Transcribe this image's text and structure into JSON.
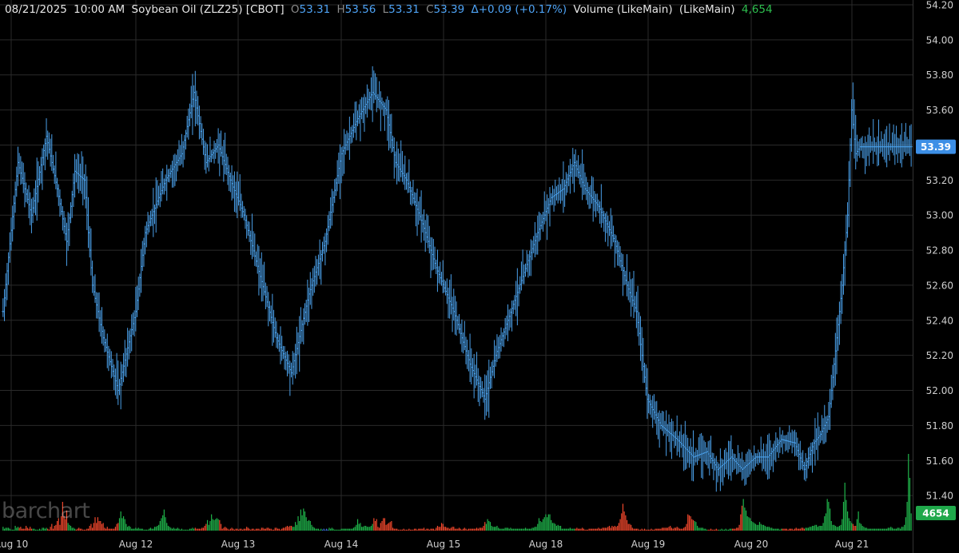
{
  "header": {
    "date": "08/21/2025",
    "time": "10:00 AM",
    "instrument": "Soybean Oil (ZLZ25) [CBOT]",
    "o_label": "O",
    "o_value": "53.31",
    "h_label": "H",
    "h_value": "53.56",
    "l_label": "L",
    "l_value": "53.31",
    "c_label": "C",
    "c_value": "53.39",
    "change": "Δ+0.09 (+0.17%)",
    "volume_label": "Volume (LikeMain)",
    "volume_mode": "(LikeMain)",
    "volume_value": "4,654"
  },
  "watermark": "barchart",
  "colors": {
    "background": "#000000",
    "price_bar": "#4a9fe8",
    "volume_up": "#1fb34a",
    "volume_down": "#f0472c",
    "volume_neutral": "#3a6fd8",
    "grid": "#2a2a2a",
    "price_tag_bg": "#3d8fe6",
    "volume_tag_bg": "#1fa84a"
  },
  "chart_data": {
    "type": "ohlc",
    "y_axis": {
      "ticks": [
        "51.40",
        "51.60",
        "51.80",
        "52.00",
        "52.20",
        "52.40",
        "52.60",
        "52.80",
        "53.00",
        "53.20",
        "53.40",
        "53.60",
        "53.80",
        "54.00",
        "54.20"
      ],
      "range": [
        51.2,
        54.2
      ],
      "side": "right"
    },
    "x_axis": {
      "ticks": [
        "Aug 10",
        "Aug 12",
        "Aug 13",
        "Aug 14",
        "Aug 15",
        "Aug 18",
        "Aug 19",
        "Aug 20",
        "Aug 21"
      ]
    },
    "last_price_tag": "53.39",
    "last_volume_tag": "4654",
    "grid": true,
    "legend": "none",
    "segments": [
      [
        [
          0,
          52.45
        ],
        [
          11,
          53.3
        ],
        [
          21,
          53.0
        ],
        [
          32,
          53.45
        ],
        [
          40,
          53.15
        ],
        [
          47,
          52.85
        ],
        [
          53,
          53.25
        ],
        [
          60,
          53.2
        ],
        [
          66,
          52.6
        ],
        [
          74,
          52.3
        ],
        [
          85,
          52.0
        ],
        [
          98,
          52.45
        ],
        [
          105,
          52.9
        ],
        [
          120,
          53.2
        ],
        [
          132,
          53.35
        ],
        [
          141,
          53.7
        ],
        [
          150,
          53.3
        ],
        [
          159,
          53.4
        ],
        [
          168,
          53.2
        ]
      ],
      [
        [
          168,
          53.2
        ],
        [
          178,
          53.0
        ],
        [
          190,
          52.65
        ],
        [
          202,
          52.3
        ],
        [
          213,
          52.1
        ],
        [
          226,
          52.55
        ],
        [
          238,
          52.85
        ],
        [
          250,
          53.35
        ],
        [
          262,
          53.55
        ],
        [
          273,
          53.7
        ],
        [
          283,
          53.6
        ],
        [
          290,
          53.3
        ],
        [
          298,
          53.2
        ]
      ],
      [
        [
          298,
          53.2
        ],
        [
          310,
          52.95
        ],
        [
          320,
          52.7
        ],
        [
          333,
          52.45
        ],
        [
          345,
          52.15
        ],
        [
          356,
          51.95
        ],
        [
          364,
          52.2
        ],
        [
          373,
          52.4
        ],
        [
          384,
          52.65
        ],
        [
          395,
          52.9
        ],
        [
          405,
          53.1
        ],
        [
          414,
          53.15
        ],
        [
          422,
          53.3
        ],
        [
          430,
          53.15
        ],
        [
          440,
          53.05
        ],
        [
          452,
          52.85
        ],
        [
          461,
          52.6
        ]
      ],
      [
        [
          461,
          52.6
        ],
        [
          468,
          52.45
        ],
        [
          476,
          51.95
        ],
        [
          486,
          51.8
        ],
        [
          498,
          51.72
        ],
        [
          510,
          51.62
        ],
        [
          520,
          51.65
        ],
        [
          528,
          51.55
        ],
        [
          538,
          51.62
        ],
        [
          546,
          51.55
        ],
        [
          556,
          51.62
        ],
        [
          565,
          51.62
        ],
        [
          575,
          51.72
        ],
        [
          585,
          51.7
        ],
        [
          592,
          51.55
        ]
      ],
      [
        [
          592,
          51.55
        ],
        [
          599,
          51.7
        ],
        [
          604,
          51.75
        ],
        [
          610,
          51.85
        ],
        [
          616,
          52.3
        ],
        [
          620,
          52.6
        ],
        [
          624,
          53.0
        ],
        [
          627,
          53.6
        ],
        [
          630,
          53.35
        ],
        [
          633,
          53.39
        ]
      ]
    ],
    "segment_bounds": [
      [
        0,
        168
      ],
      [
        168,
        298
      ],
      [
        298,
        461
      ],
      [
        461,
        592
      ],
      [
        592,
        633
      ]
    ],
    "volume": [
      4,
      2,
      3,
      3,
      3,
      2,
      1,
      1,
      1,
      5,
      3,
      4,
      3,
      4,
      2,
      2,
      2,
      5,
      3,
      2,
      4,
      2,
      2,
      2,
      1,
      1,
      1,
      2,
      1,
      3,
      3,
      2,
      3,
      2,
      1,
      4,
      7,
      2,
      5,
      6,
      10,
      13,
      6,
      15,
      30,
      15,
      12,
      21,
      8,
      6,
      5,
      3,
      3,
      2,
      1,
      2,
      3,
      2,
      2,
      1,
      1,
      1,
      2,
      2,
      5,
      7,
      3,
      8,
      14,
      8,
      14,
      10,
      10,
      7,
      8,
      3,
      2,
      4,
      2,
      2,
      2,
      2,
      2,
      4,
      7,
      8,
      13,
      20,
      13,
      15,
      12,
      7,
      4,
      5,
      4,
      2,
      2,
      2,
      3,
      2,
      3,
      2,
      2,
      2,
      1,
      1,
      1,
      1,
      2,
      3,
      2,
      2,
      4,
      4,
      5,
      6,
      10,
      13,
      16,
      22,
      14,
      8,
      5,
      4,
      3,
      2,
      3,
      2,
      2,
      3,
      2,
      1,
      2,
      1,
      1,
      1,
      1,
      1,
      2,
      2,
      3,
      2,
      3,
      2,
      2,
      2,
      2,
      3,
      3,
      5,
      7,
      11,
      6,
      10,
      17,
      12,
      11,
      12,
      13,
      12,
      11,
      7,
      2,
      3,
      4,
      3,
      2,
      1,
      2,
      3,
      2,
      1,
      2,
      2,
      1,
      2,
      2,
      1,
      2,
      2,
      4,
      3,
      2,
      1,
      2,
      2,
      1,
      2,
      2,
      2,
      1,
      3,
      3,
      2,
      2,
      3,
      3,
      2,
      2,
      1,
      1,
      3,
      3,
      2,
      2,
      1,
      2,
      3,
      3,
      4,
      5,
      4,
      5,
      5,
      4,
      4,
      9,
      6,
      15,
      10,
      22,
      16,
      23,
      20,
      14,
      10,
      11,
      10,
      6,
      4,
      3,
      2,
      2,
      2,
      1,
      2,
      1,
      2,
      1,
      2,
      1,
      3,
      2,
      3,
      2,
      1,
      1,
      1,
      1,
      1,
      2,
      2,
      2,
      2,
      2,
      2,
      2,
      2,
      2,
      3,
      4,
      6,
      12,
      7,
      8,
      4,
      4,
      5,
      5,
      4,
      4,
      4,
      5,
      7,
      13,
      10,
      12,
      4,
      3,
      8,
      10,
      13,
      13,
      6,
      7,
      8,
      9,
      10,
      3,
      2,
      2,
      2,
      1,
      1,
      1,
      1,
      2,
      1,
      1,
      1,
      2,
      1,
      1,
      1,
      2,
      2,
      1,
      2,
      2,
      2,
      2,
      3,
      1,
      2,
      2,
      1,
      2,
      2,
      2,
      1,
      3,
      5,
      4,
      4,
      8,
      7,
      4,
      4,
      3,
      3,
      2,
      3,
      4,
      4,
      2,
      2,
      2,
      3,
      2,
      1,
      2,
      3,
      2,
      1,
      2,
      2,
      2,
      2,
      2,
      2,
      3,
      2,
      3,
      3,
      3,
      5,
      9,
      7,
      12,
      10,
      9,
      5,
      4,
      4,
      4,
      5,
      3,
      2,
      2,
      2,
      2,
      3,
      3,
      3,
      2,
      3,
      2,
      2,
      2,
      2,
      2,
      2,
      2,
      2,
      2,
      2,
      3,
      2,
      2,
      2,
      2,
      3,
      3,
      4,
      4,
      7,
      13,
      10,
      9,
      12,
      14,
      17,
      14,
      17,
      17,
      11,
      8,
      8,
      7,
      5,
      6,
      5,
      5,
      2,
      2,
      2,
      2,
      2,
      2,
      3,
      2,
      2,
      2,
      2,
      3,
      2,
      2,
      2,
      3,
      2,
      1,
      1,
      1,
      2,
      2,
      2,
      2,
      2,
      2,
      2,
      3,
      2,
      2,
      3,
      3,
      3,
      3,
      4,
      5,
      3,
      5,
      4,
      5,
      4,
      5,
      8,
      12,
      18,
      28,
      20,
      16,
      11,
      7,
      7,
      6,
      3,
      2,
      2,
      2,
      2,
      1,
      1,
      2,
      1,
      2,
      1,
      1,
      1,
      1,
      2,
      1,
      1,
      2,
      2,
      2,
      2,
      2,
      3,
      3,
      3,
      3,
      3,
      4,
      5,
      3,
      2,
      3,
      3,
      4,
      3,
      2,
      2,
      2,
      3,
      4,
      7,
      17,
      16,
      15,
      12,
      11,
      10,
      9,
      5,
      3,
      3,
      3,
      3,
      2,
      2,
      1,
      1,
      1,
      2,
      1,
      1,
      1,
      2,
      1,
      1,
      1,
      2,
      1,
      1,
      2,
      1,
      1,
      2,
      2,
      2,
      2,
      2,
      3,
      3,
      6,
      17,
      26,
      33,
      24,
      21,
      15,
      14,
      13,
      10,
      9,
      8,
      7,
      6,
      6,
      9,
      7,
      6,
      6,
      5,
      4,
      4,
      4,
      3,
      3,
      2,
      2,
      2,
      2,
      2,
      1,
      2,
      2,
      2,
      2,
      2,
      1,
      2,
      2,
      2,
      1,
      2,
      3,
      2,
      2,
      2,
      3,
      3,
      2,
      3,
      3,
      3,
      4,
      4,
      5,
      5,
      6,
      6,
      4,
      5,
      5,
      5,
      8,
      15,
      18,
      33,
      30,
      23,
      10,
      6,
      6,
      5,
      4,
      4,
      5,
      6,
      12,
      30,
      50,
      32,
      20,
      13,
      10,
      8,
      7,
      5,
      5,
      12,
      20,
      8,
      7,
      5,
      4,
      3,
      3,
      2,
      2,
      2,
      2,
      2,
      2,
      2,
      2,
      2,
      2,
      2,
      2,
      2,
      2,
      2,
      3,
      3,
      4,
      3,
      2,
      2,
      2,
      3,
      3,
      2,
      4,
      4,
      6,
      14,
      30,
      80,
      55,
      18
    ],
    "volume_max": 100
  }
}
